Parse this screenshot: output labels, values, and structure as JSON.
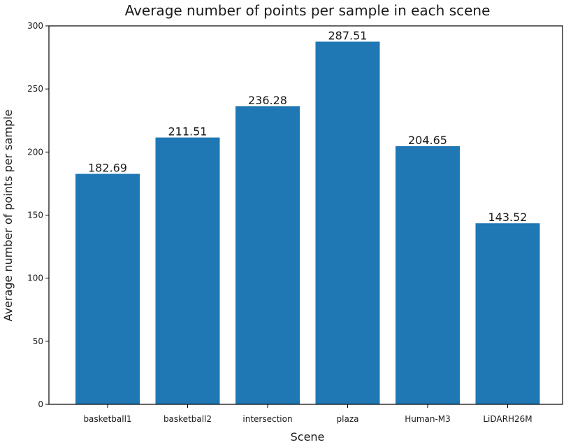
{
  "chart_data": {
    "type": "bar",
    "title": "Average number of points per sample in each scene",
    "xlabel": "Scene",
    "ylabel": "Average number of points per sample",
    "categories": [
      "basketball1",
      "basketball2",
      "intersection",
      "plaza",
      "Human-M3",
      "LiDARH26M"
    ],
    "values": [
      182.69,
      211.51,
      236.28,
      287.51,
      204.65,
      143.52
    ],
    "data_labels": [
      "182.69",
      "211.51",
      "236.28",
      "287.51",
      "204.65",
      "143.52"
    ],
    "ylim": [
      0,
      300
    ],
    "yticks": [
      0,
      50,
      100,
      150,
      200,
      250,
      300
    ],
    "bar_color": "#1f77b4",
    "grid": false,
    "legend": "none"
  }
}
